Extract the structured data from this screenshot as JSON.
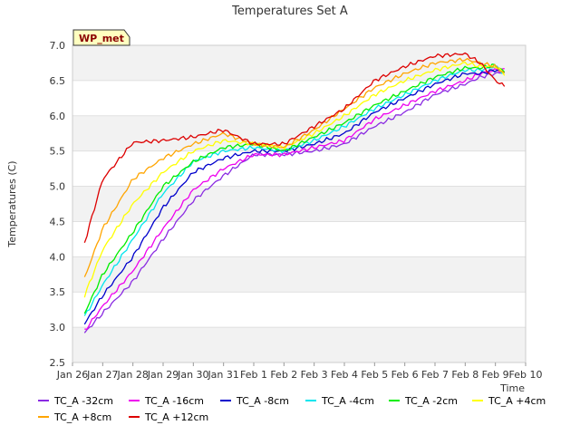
{
  "chart_data": {
    "type": "line",
    "title": "Temperatures Set A",
    "xlabel": "Time",
    "ylabel": "Temperatures (C)",
    "station_badge": "WP_met",
    "ylim": [
      2.5,
      7.0
    ],
    "y_ticks": [
      2.5,
      3.0,
      3.5,
      4.0,
      4.5,
      5.0,
      5.5,
      6.0,
      6.5,
      7.0
    ],
    "y_tick_labels": [
      "2.5",
      "3.0",
      "3.5",
      "4.0",
      "4.5",
      "5.0",
      "5.5",
      "6.0",
      "6.5",
      "7.0"
    ],
    "x_range_days": [
      0,
      15
    ],
    "x_tick_labels": [
      "Jan 26",
      "Jan 27",
      "Jan 28",
      "Jan 29",
      "Jan 30",
      "Jan 31",
      "Feb 1",
      "Feb 2",
      "Feb 3",
      "Feb 4",
      "Feb 5",
      "Feb 6",
      "Feb 7",
      "Feb 8",
      "Feb 9",
      "Feb 10"
    ],
    "x": [
      0.4,
      1,
      2,
      3,
      4,
      5,
      6,
      7,
      8,
      9,
      10,
      11,
      12,
      13,
      13.5,
      14,
      14.3
    ],
    "grid": true,
    "legend": "bottom",
    "series": [
      {
        "name": "TC_A -32cm",
        "color": "#8a2be2",
        "values": [
          2.92,
          3.2,
          3.65,
          4.25,
          4.8,
          5.15,
          5.45,
          5.45,
          5.5,
          5.6,
          5.85,
          6.05,
          6.3,
          6.45,
          6.55,
          6.6,
          6.62
        ]
      },
      {
        "name": "TC_A -16cm",
        "color": "#ee00ee",
        "values": [
          2.95,
          3.3,
          3.8,
          4.4,
          4.95,
          5.25,
          5.45,
          5.45,
          5.55,
          5.65,
          5.95,
          6.15,
          6.35,
          6.5,
          6.6,
          6.65,
          6.65
        ]
      },
      {
        "name": "TC_A -8cm",
        "color": "#0000cc",
        "values": [
          3.05,
          3.45,
          4.0,
          4.7,
          5.2,
          5.4,
          5.5,
          5.5,
          5.6,
          5.75,
          6.05,
          6.25,
          6.45,
          6.6,
          6.6,
          6.65,
          6.62
        ]
      },
      {
        "name": "TC_A -4cm",
        "color": "#00e5ee",
        "values": [
          3.15,
          3.6,
          4.25,
          4.9,
          5.35,
          5.5,
          5.55,
          5.5,
          5.65,
          5.85,
          6.1,
          6.3,
          6.5,
          6.65,
          6.65,
          6.7,
          6.6
        ]
      },
      {
        "name": "TC_A -2cm",
        "color": "#00ee00",
        "values": [
          3.2,
          3.75,
          4.35,
          5.0,
          5.35,
          5.55,
          5.6,
          5.5,
          5.7,
          5.9,
          6.15,
          6.35,
          6.55,
          6.68,
          6.68,
          6.72,
          6.62
        ]
      },
      {
        "name": "TC_A +4cm",
        "color": "#ffff00",
        "values": [
          3.45,
          4.1,
          4.75,
          5.2,
          5.5,
          5.65,
          5.6,
          5.55,
          5.75,
          6.0,
          6.3,
          6.5,
          6.65,
          6.75,
          6.7,
          6.7,
          6.6
        ]
      },
      {
        "name": "TC_A +8cm",
        "color": "#ffa500",
        "values": [
          3.7,
          4.4,
          5.1,
          5.4,
          5.6,
          5.75,
          5.6,
          5.55,
          5.8,
          6.1,
          6.4,
          6.6,
          6.75,
          6.8,
          6.75,
          6.7,
          6.6
        ]
      },
      {
        "name": "TC_A +12cm",
        "color": "#dd0000",
        "values": [
          4.2,
          5.1,
          5.62,
          5.65,
          5.7,
          5.8,
          5.6,
          5.6,
          5.85,
          6.1,
          6.5,
          6.7,
          6.85,
          6.88,
          6.75,
          6.5,
          6.42
        ]
      }
    ]
  }
}
